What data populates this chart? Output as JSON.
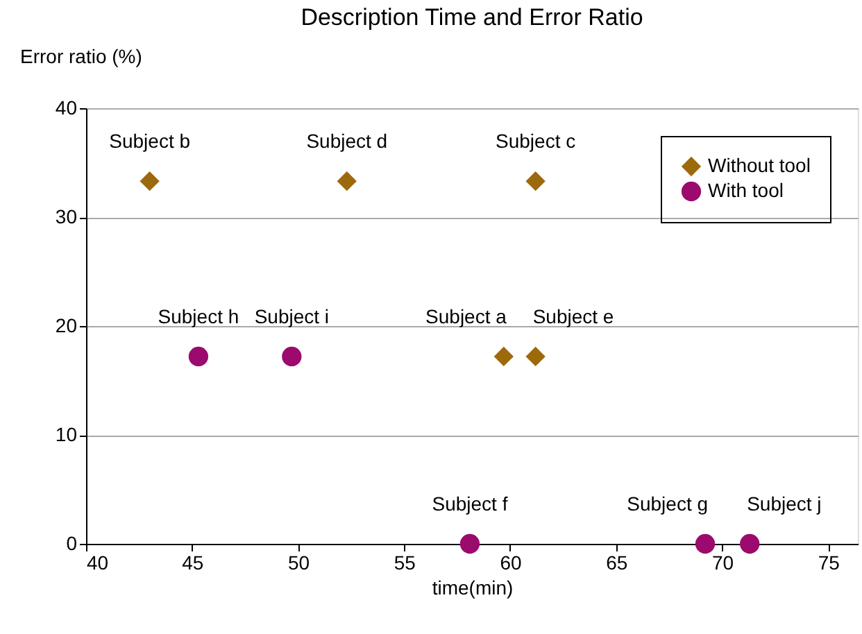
{
  "chart_data": {
    "type": "scatter",
    "title": "Description Time and Error Ratio",
    "xlabel": "time(min)",
    "ylabel": "Error ratio (%)",
    "series": [
      {
        "name": "Without tool",
        "color": "#9c6a0c",
        "marker": "diamond",
        "x": [
          43.0,
          52.3,
          61.2,
          59.7,
          61.2
        ],
        "values": [
          33.3,
          33.3,
          33.3,
          17.2,
          17.2
        ]
      },
      {
        "name": "With tool",
        "color": "#9c0a6e",
        "marker": "circle",
        "x": [
          45.3,
          49.7,
          58.1,
          69.2,
          71.3
        ],
        "values": [
          17.2,
          17.2,
          0,
          0,
          0
        ]
      }
    ],
    "annotations": [
      {
        "text": "Subject b",
        "x": 43.0,
        "y": 33.3
      },
      {
        "text": "Subject d",
        "x": 52.3,
        "y": 33.3
      },
      {
        "text": "Subject c",
        "x": 61.2,
        "y": 33.3
      },
      {
        "text": "Subject h",
        "x": 45.3,
        "y": 17.2
      },
      {
        "text": "Subject i",
        "x": 49.7,
        "y": 17.2
      },
      {
        "text": "Subject a",
        "x": 59.7,
        "y": 17.2
      },
      {
        "text": "Subject e",
        "x": 61.2,
        "y": 17.2
      },
      {
        "text": "Subject f",
        "x": 58.1,
        "y": 0
      },
      {
        "text": "Subject g",
        "x": 69.2,
        "y": 0
      },
      {
        "text": "Subject j",
        "x": 71.3,
        "y": 0
      }
    ],
    "xlim": [
      40,
      76.4
    ],
    "xticks": [
      40,
      45,
      50,
      55,
      60,
      65,
      70,
      75
    ],
    "ylim": [
      0,
      40
    ],
    "yticks": [
      0,
      10,
      20,
      30,
      40
    ],
    "grid": "y",
    "legend": "top right"
  }
}
